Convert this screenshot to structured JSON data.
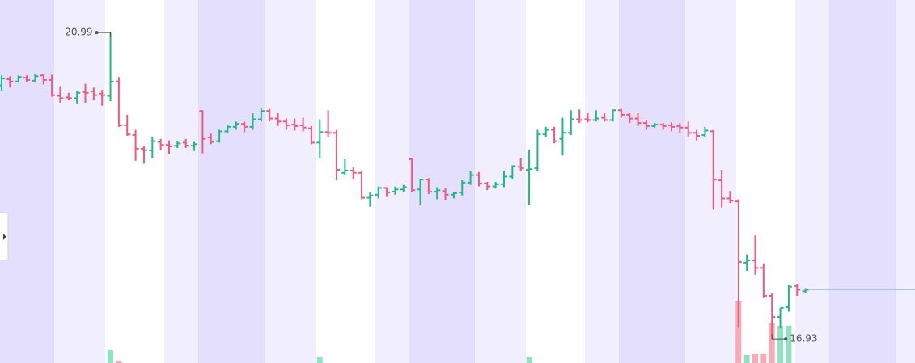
{
  "chart_data": {
    "type": "ohlc",
    "open": [
      20.29,
      20.37,
      20.34,
      20.39,
      20.35,
      20.42,
      20.36,
      20.15,
      20.13,
      20.12,
      20.2,
      20.21,
      20.18,
      20.15,
      20.34,
      19.76,
      19.63,
      19.45,
      19.43,
      19.54,
      19.5,
      19.49,
      19.53,
      19.49,
      19.95,
      19.6,
      19.55,
      19.68,
      19.74,
      19.78,
      19.74,
      19.84,
      19.95,
      19.85,
      19.81,
      19.77,
      19.76,
      19.72,
      19.53,
      19.67,
      19.66,
      19.13,
      19.16,
      19.13,
      18.8,
      18.84,
      18.93,
      18.88,
      18.91,
      19.31,
      18.91,
      19.04,
      18.88,
      18.89,
      18.84,
      18.87,
      19.0,
      19.1,
      18.99,
      18.95,
      18.98,
      19.08,
      19.21,
      19.17,
      19.19,
      19.64,
      19.7,
      19.58,
      19.66,
      19.84,
      19.84,
      19.83,
      19.86,
      19.83,
      19.96,
      19.9,
      19.85,
      19.79,
      19.75,
      19.77,
      19.76,
      19.75,
      19.73,
      19.66,
      19.63,
      19.68,
      19.03,
      18.79,
      18.75,
      17.94,
      17.97,
      17.87,
      17.5,
      17.22,
      17.35,
      17.63,
      17.56
    ],
    "high": [
      20.42,
      20.41,
      20.42,
      20.42,
      20.44,
      20.44,
      20.43,
      20.28,
      20.19,
      20.22,
      20.31,
      20.26,
      20.23,
      20.99,
      20.4,
      19.9,
      19.7,
      19.49,
      19.6,
      19.58,
      19.56,
      19.55,
      19.58,
      19.54,
      19.96,
      19.65,
      19.7,
      19.76,
      19.81,
      19.81,
      19.92,
      19.99,
      19.98,
      19.92,
      19.85,
      19.85,
      19.86,
      19.75,
      19.84,
      19.96,
      19.7,
      19.31,
      19.2,
      19.15,
      18.87,
      18.95,
      18.94,
      18.95,
      18.97,
      19.32,
      19.05,
      19.06,
      18.94,
      18.93,
      18.88,
      19.03,
      19.15,
      19.14,
      19.01,
      19.01,
      19.15,
      19.23,
      19.32,
      19.44,
      19.7,
      19.74,
      19.74,
      19.86,
      19.96,
      19.97,
      19.92,
      19.96,
      19.92,
      19.97,
      19.98,
      19.92,
      19.92,
      19.83,
      19.79,
      19.79,
      19.8,
      19.79,
      19.81,
      19.7,
      19.74,
      19.7,
      19.17,
      18.89,
      18.78,
      18.05,
      18.3,
      17.93,
      17.53,
      17.34,
      17.65,
      17.66,
      17.6
    ],
    "low": [
      20.21,
      20.26,
      20.33,
      20.33,
      20.34,
      20.3,
      20.14,
      20.06,
      20.09,
      20.04,
      20.05,
      20.09,
      20.02,
      20.08,
      19.74,
      19.62,
      19.29,
      19.25,
      19.33,
      19.43,
      19.38,
      19.46,
      19.46,
      19.42,
      19.39,
      19.51,
      19.53,
      19.65,
      19.7,
      19.67,
      19.7,
      19.81,
      19.81,
      19.75,
      19.7,
      19.69,
      19.68,
      19.51,
      19.32,
      19.6,
      19.03,
      19.1,
      19.04,
      18.78,
      18.68,
      18.79,
      18.81,
      18.84,
      18.88,
      18.88,
      18.71,
      18.85,
      18.78,
      18.77,
      18.79,
      18.83,
      18.97,
      18.95,
      18.9,
      18.92,
      18.94,
      19.04,
      19.16,
      18.7,
      19.15,
      19.6,
      19.52,
      19.36,
      19.63,
      19.79,
      19.8,
      19.81,
      19.81,
      19.81,
      19.86,
      19.79,
      19.75,
      19.7,
      19.73,
      19.7,
      19.68,
      19.66,
      19.61,
      19.56,
      19.6,
      18.64,
      18.67,
      18.73,
      17.08,
      17.83,
      17.78,
      17.48,
      16.93,
      17.07,
      17.29,
      17.5,
      17.54
    ],
    "close": [
      20.38,
      20.34,
      20.4,
      20.36,
      20.41,
      20.36,
      20.16,
      20.12,
      20.12,
      20.19,
      20.19,
      20.16,
      20.16,
      20.34,
      19.76,
      19.64,
      19.45,
      19.43,
      19.55,
      19.5,
      19.48,
      19.52,
      19.49,
      19.51,
      19.58,
      19.54,
      19.68,
      19.74,
      19.78,
      19.74,
      19.84,
      19.95,
      19.85,
      19.81,
      19.76,
      19.75,
      19.73,
      19.53,
      19.67,
      19.66,
      19.17,
      19.16,
      19.13,
      18.8,
      18.83,
      18.93,
      18.87,
      18.91,
      18.94,
      18.9,
      19.04,
      18.88,
      18.9,
      18.84,
      18.86,
      19.0,
      19.1,
      18.99,
      18.95,
      18.98,
      19.08,
      19.22,
      19.19,
      19.18,
      19.64,
      19.7,
      19.55,
      19.66,
      19.84,
      19.83,
      19.83,
      19.85,
      19.83,
      19.96,
      19.9,
      19.85,
      19.79,
      19.75,
      19.77,
      19.75,
      19.74,
      19.73,
      19.66,
      19.62,
      19.69,
      19.04,
      18.79,
      18.76,
      17.95,
      17.97,
      17.87,
      17.5,
      17.22,
      17.34,
      17.62,
      17.58,
      17.58
    ],
    "volume": [
      0,
      0,
      0,
      0,
      0,
      0,
      0,
      0,
      0,
      0,
      0,
      0,
      0,
      16,
      3,
      0,
      0,
      0,
      0,
      0,
      0,
      0,
      0,
      0,
      0,
      0,
      0,
      0,
      0,
      0,
      0,
      0,
      0,
      0,
      0,
      0,
      0,
      0,
      8,
      0,
      0,
      0,
      0,
      0,
      0,
      0,
      0,
      0,
      0,
      0,
      0,
      0,
      0,
      0,
      0,
      0,
      0,
      0,
      0,
      0,
      0,
      0,
      0,
      7,
      0,
      0,
      0,
      0,
      0,
      0,
      0,
      0,
      0,
      0,
      0,
      0,
      0,
      0,
      0,
      0,
      0,
      0,
      0,
      0,
      0,
      0,
      0,
      0,
      77,
      10,
      11,
      11,
      50,
      46,
      46,
      0,
      0
    ],
    "ylim": [
      16.61,
      21.42
    ],
    "up_color": "#1fb985",
    "down_color": "#ee5a7c",
    "volume_up_color": "#8fe3c2",
    "volume_down_color": "#f9aab6",
    "last_price_color": "#a9c3ee"
  }
}
